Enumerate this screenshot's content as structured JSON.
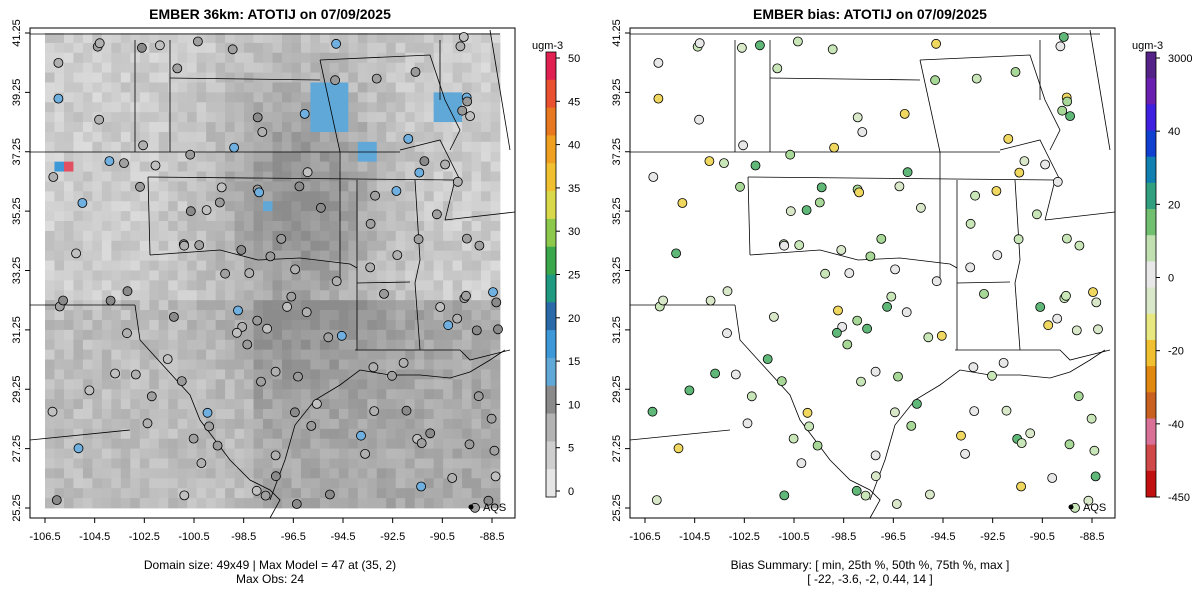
{
  "left": {
    "title": "EMBER 36km: ATOTIJ on 07/09/2025",
    "unit": "ugm-3",
    "legend_ticks": [
      "0",
      "5",
      "10",
      "15",
      "20",
      "25",
      "30",
      "35",
      "40",
      "45",
      "50"
    ],
    "colorbar_colors": [
      "#e6e6e6",
      "#cfcfcf",
      "#b3b3b3",
      "#8a8a8a",
      "#5fa8d8",
      "#3d98d8",
      "#2a6aa8",
      "#1f9a80",
      "#3aa84a",
      "#8cc84a",
      "#d8d84a",
      "#f0c030",
      "#f0a020",
      "#e87820",
      "#e85030",
      "#e02050"
    ],
    "footer_line1": "Domain size: 49x49 | Max Model = 47 at (35, 2)",
    "footer_line2": "Max Obs: 24",
    "obs_label": "AQS"
  },
  "right": {
    "title": "EMBER bias: ATOTIJ on 07/09/2025",
    "unit": "ugm-3",
    "legend_ticks": [
      "3000",
      "40",
      "20",
      "0",
      "-20",
      "-40",
      "-450"
    ],
    "colorbar_colors": [
      "#c01010",
      "#d04848",
      "#d87098",
      "#c86020",
      "#e08810",
      "#f0c030",
      "#e8e880",
      "#d8e8c8",
      "#e8e8e8",
      "#c0e0b0",
      "#70c070",
      "#30a080",
      "#1080b0",
      "#1040d0",
      "#4020e0",
      "#6a1fb0",
      "#552288"
    ],
    "footer_line1": "Bias Summary: [ min, 25th %, 50th %, 75th %, max ]",
    "footer_line2": "[ -22,   -3.6,   -2,   0.44,   14 ]",
    "obs_label": "AQS"
  },
  "axes": {
    "x_ticks": [
      "-106.5",
      "-104.5",
      "-102.5",
      "-100.5",
      "-98.5",
      "-96.5",
      "-94.5",
      "-92.5",
      "-90.5",
      "-88.5"
    ],
    "y_ticks": [
      "25.25",
      "27.25",
      "29.25",
      "31.25",
      "33.25",
      "35.25",
      "37.25",
      "39.25",
      "41.25"
    ]
  },
  "colors": {
    "no_data": "#ffffff",
    "border": "#000000",
    "obs_point_neutral": "#a0a0a0"
  }
}
